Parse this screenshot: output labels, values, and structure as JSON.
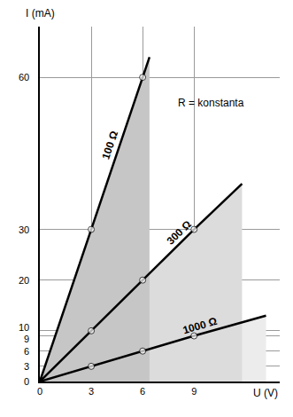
{
  "chart_data": {
    "type": "line",
    "xlabel": "U (V)",
    "ylabel": "I (mA)",
    "xlim": [
      0,
      14
    ],
    "ylim": [
      0,
      70
    ],
    "xticks": [
      0,
      3,
      6,
      9
    ],
    "yticks": [
      0,
      3,
      6,
      9,
      10,
      20,
      30,
      60
    ],
    "grid": true,
    "marker": "circle",
    "series": [
      {
        "name": "100 Ω",
        "color": "#c6c6c6",
        "x": [
          0,
          3,
          6,
          6.4
        ],
        "values": [
          0,
          30,
          60,
          64
        ]
      },
      {
        "name": "300 Ω",
        "color": "#dcdcdc",
        "x": [
          0,
          3,
          6,
          9,
          11.8
        ],
        "values": [
          0,
          10,
          20,
          30,
          39
        ]
      },
      {
        "name": "1000 Ω",
        "color": "#ececec",
        "x": [
          0,
          3,
          6,
          9,
          13.2
        ],
        "values": [
          0,
          3,
          6,
          9,
          13
        ]
      }
    ],
    "annotations": [
      {
        "text": "R = konstanta",
        "x": 10,
        "y": 55
      }
    ]
  }
}
